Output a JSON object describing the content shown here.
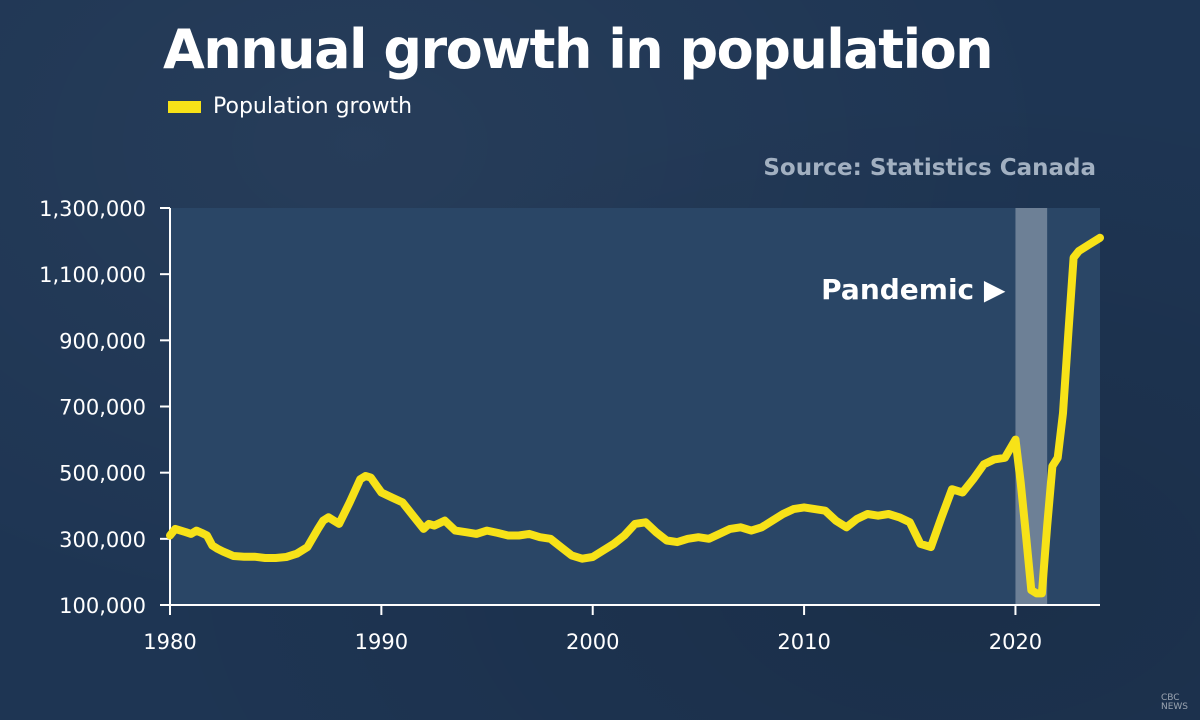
{
  "header": {
    "title": "Annual growth in population",
    "source": "Source: Statistics Canada",
    "watermark_line1": "CBC",
    "watermark_line2": "NEWS"
  },
  "colors": {
    "background": "#1e3553",
    "plot_area": "#2a4666",
    "series": "#f7e218",
    "pandemic_band": "#7e8ea3",
    "source_text": "#a2b0c1"
  },
  "chart_data": {
    "type": "line",
    "series": [
      {
        "name": "Population growth",
        "x": [
          1980.0,
          1980.25,
          1980.5,
          1980.75,
          1981.0,
          1981.25,
          1981.5,
          1981.75,
          1982.0,
          1982.25,
          1982.5,
          1982.75,
          1983.0,
          1983.5,
          1984.0,
          1984.5,
          1985.0,
          1985.5,
          1986.0,
          1986.5,
          1987.0,
          1987.25,
          1987.5,
          1988.0,
          1988.5,
          1989.0,
          1989.25,
          1989.5,
          1990.0,
          1990.5,
          1991.0,
          1991.5,
          1992.0,
          1992.25,
          1992.5,
          1993.0,
          1993.5,
          1994.0,
          1994.5,
          1995.0,
          1995.5,
          1996.0,
          1996.5,
          1997.0,
          1997.5,
          1998.0,
          1998.5,
          1999.0,
          1999.5,
          2000.0,
          2000.5,
          2001.0,
          2001.5,
          2002.0,
          2002.5,
          2003.0,
          2003.5,
          2004.0,
          2004.5,
          2005.0,
          2005.5,
          2006.0,
          2006.5,
          2007.0,
          2007.5,
          2008.0,
          2008.5,
          2009.0,
          2009.5,
          2010.0,
          2010.5,
          2011.0,
          2011.5,
          2012.0,
          2012.5,
          2013.0,
          2013.5,
          2014.0,
          2014.5,
          2015.0,
          2015.5,
          2016.0,
          2016.5,
          2017.0,
          2017.5,
          2018.0,
          2018.5,
          2019.0,
          2019.5,
          2020.0,
          2020.25,
          2020.5,
          2020.75,
          2021.0,
          2021.25,
          2021.5,
          2021.75,
          2022.0,
          2022.25,
          2022.5,
          2022.75,
          2023.0,
          2023.5,
          2024.0
        ],
        "values": [
          310000,
          330000,
          325000,
          320000,
          315000,
          325000,
          318000,
          310000,
          280000,
          270000,
          262000,
          255000,
          248000,
          246000,
          246000,
          242000,
          242000,
          245000,
          255000,
          275000,
          330000,
          355000,
          365000,
          345000,
          410000,
          480000,
          490000,
          485000,
          440000,
          425000,
          410000,
          370000,
          330000,
          345000,
          340000,
          355000,
          325000,
          320000,
          315000,
          325000,
          318000,
          310000,
          310000,
          315000,
          305000,
          300000,
          275000,
          250000,
          240000,
          245000,
          265000,
          285000,
          310000,
          345000,
          350000,
          320000,
          295000,
          290000,
          300000,
          305000,
          300000,
          315000,
          330000,
          335000,
          325000,
          335000,
          355000,
          375000,
          390000,
          395000,
          390000,
          385000,
          355000,
          335000,
          360000,
          375000,
          370000,
          375000,
          365000,
          350000,
          285000,
          275000,
          365000,
          450000,
          440000,
          480000,
          525000,
          540000,
          545000,
          600000,
          470000,
          310000,
          145000,
          135000,
          135000,
          340000,
          520000,
          545000,
          680000,
          920000,
          1150000,
          1170000,
          1190000,
          1210000
        ]
      }
    ],
    "xlim": [
      1980,
      2024
    ],
    "ylim": [
      100000,
      1300000
    ],
    "x_ticks": [
      1980,
      1990,
      2000,
      2010,
      2020
    ],
    "x_tick_labels": [
      "1980",
      "1990",
      "2000",
      "2010",
      "2020"
    ],
    "y_ticks": [
      100000,
      300000,
      500000,
      700000,
      900000,
      1100000,
      1300000
    ],
    "y_tick_labels": [
      "100,000",
      "300,000",
      "500,000",
      "700,000",
      "900,000",
      "1,100,000",
      "1,300,000"
    ],
    "annotations": [
      {
        "label": "Pandemic",
        "arrow": "▶",
        "band_x": [
          2020,
          2021.5
        ]
      }
    ],
    "legend_placement": "top-left",
    "grid": false
  }
}
